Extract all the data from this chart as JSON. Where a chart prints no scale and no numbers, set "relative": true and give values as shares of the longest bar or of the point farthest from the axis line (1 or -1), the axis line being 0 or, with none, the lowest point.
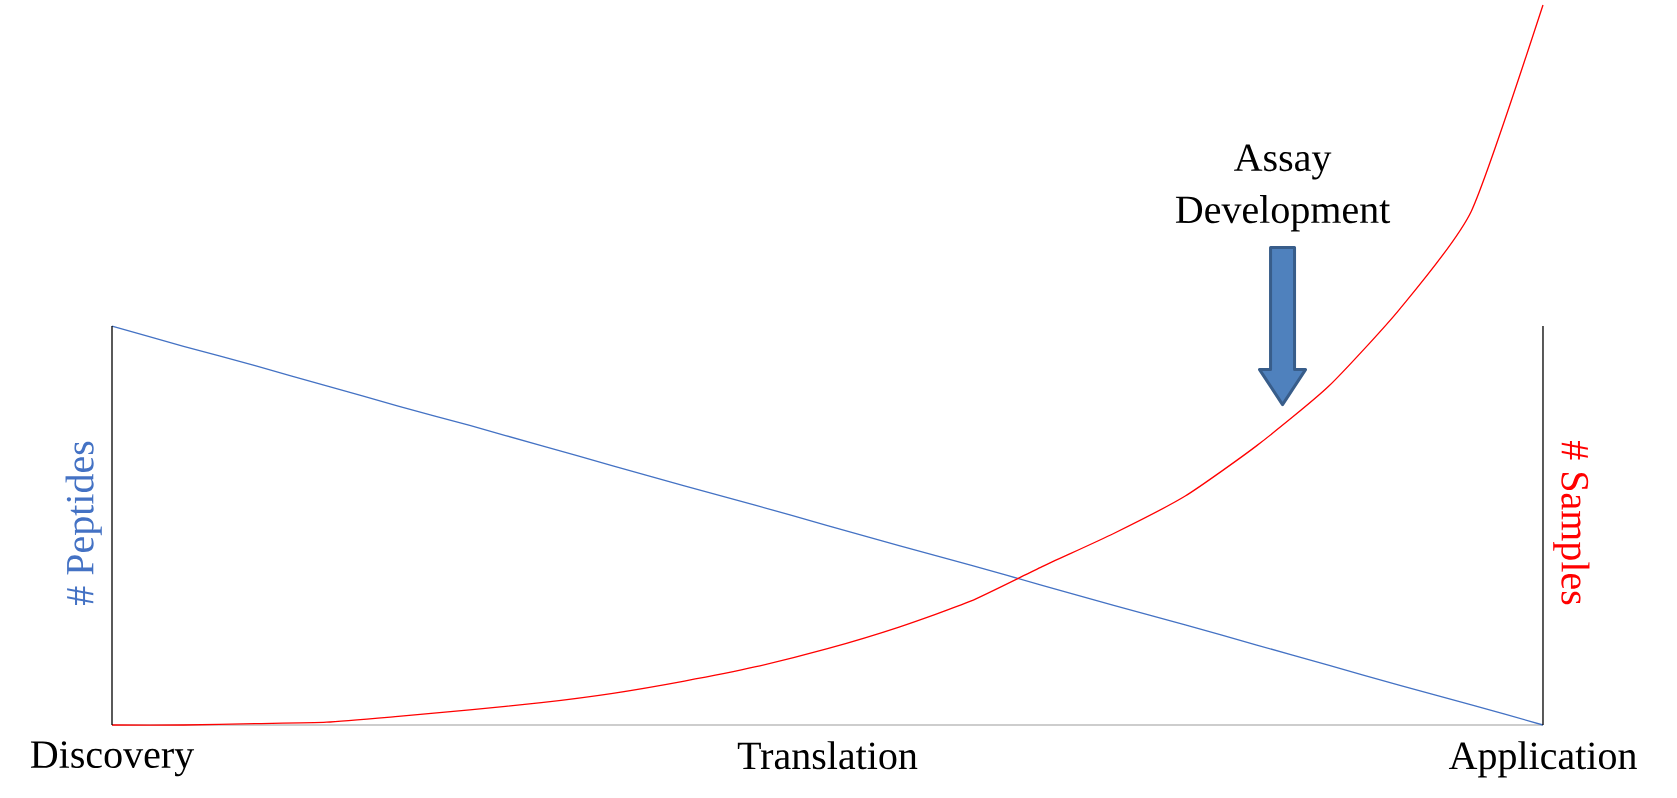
{
  "chart_data": {
    "type": "line",
    "relative": true,
    "categories": [
      "Discovery",
      null,
      null,
      null,
      null,
      null,
      null,
      null,
      null,
      null,
      "Translation",
      null,
      null,
      null,
      null,
      null,
      null,
      null,
      null,
      null,
      "Application"
    ],
    "ylabel": "# Peptides",
    "y2label": "# Samples",
    "tick_labels": "x",
    "grid": false,
    "marker": "none",
    "line_style": "solid",
    "annotations": [
      "Assay Development"
    ],
    "series": [
      {
        "color": "#4472c4",
        "values": [
          0.554,
          0.526,
          0.499,
          0.471,
          0.443,
          0.416,
          0.388,
          0.36,
          0.332,
          0.305,
          0.277,
          0.249,
          0.222,
          0.194,
          0.166,
          0.139,
          0.111,
          0.083,
          0.055,
          0.028,
          0
        ]
      },
      {
        "color": "#ff0000",
        "values": [
          0,
          0,
          0.002,
          0.004,
          0.012,
          0.021,
          0.031,
          0.044,
          0.061,
          0.081,
          0.106,
          0.136,
          0.172,
          0.22,
          0.266,
          0.318,
          0.388,
          0.47,
          0.578,
          0.714,
          1
        ]
      }
    ]
  }
}
